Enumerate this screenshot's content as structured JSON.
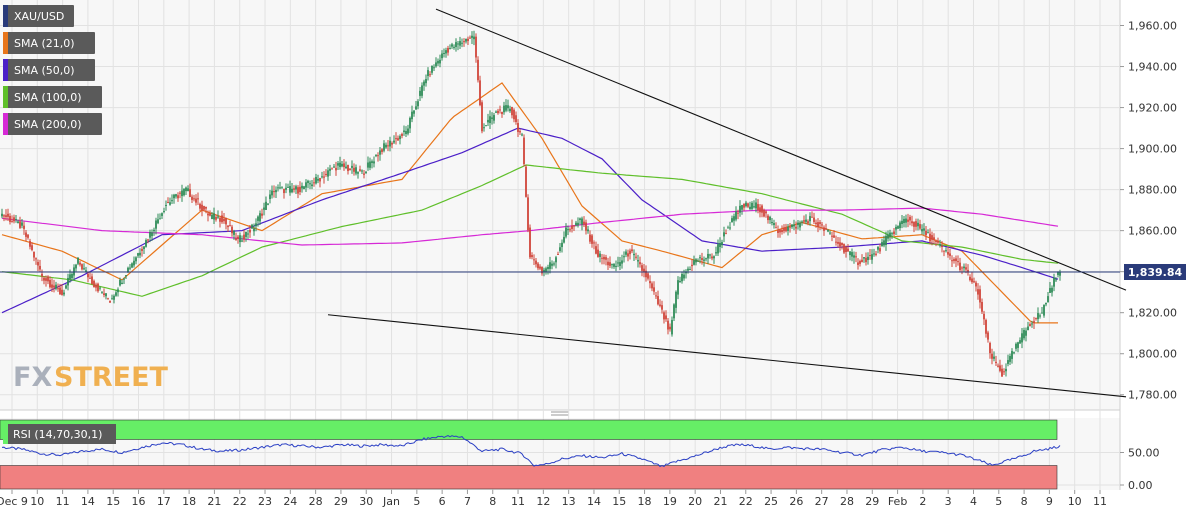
{
  "colors": {
    "background": "#f7f7f7",
    "grid": "#e2e2e2",
    "up": "#2e8b57",
    "down": "#d0453a",
    "sma21": "#e8751a",
    "sma50": "#4b1fc8",
    "sma100": "#5fbf2a",
    "sma200": "#d629d6",
    "price_line": "#2a3b7a",
    "trend": "#111111",
    "rsi_line": "#2a3fc4",
    "rsi_overbought": "#66ee66",
    "rsi_oversold": "#f08080",
    "legend_bg": "#5a5a5a"
  },
  "watermark": {
    "text_fx": "FX",
    "text_street": "STREET"
  },
  "price_tag": "1,839.84",
  "chart_data": [
    {
      "type": "candlestick",
      "symbol": "XAU/USD",
      "ylim": [
        1775,
        1970
      ],
      "y_ticks": [
        "1,780.00",
        "1,800.00",
        "1,820.00",
        "1,840.00",
        "1,860.00",
        "1,880.00",
        "1,900.00",
        "1,920.00",
        "1,940.00",
        "1,960.00"
      ],
      "y_tick_values": [
        1780,
        1800,
        1820,
        1840,
        1860,
        1880,
        1900,
        1920,
        1940,
        1960
      ],
      "x_labels": [
        "Dec 9",
        "10",
        "11",
        "14",
        "15",
        "16",
        "17",
        "18",
        "21",
        "22",
        "23",
        "24",
        "28",
        "29",
        "30",
        "Jan",
        "5",
        "6",
        "7",
        "8",
        "11",
        "12",
        "13",
        "14",
        "15",
        "18",
        "19",
        "20",
        "21",
        "22",
        "25",
        "26",
        "27",
        "28",
        "29",
        "Feb",
        "2",
        "3",
        "4",
        "5",
        "8",
        "9",
        "10",
        "11"
      ],
      "last_price": 1839.84,
      "price_anchors": [
        [
          0,
          1868
        ],
        [
          10,
          1862
        ],
        [
          20,
          1838
        ],
        [
          30,
          1829
        ],
        [
          38,
          1845
        ],
        [
          46,
          1834
        ],
        [
          54,
          1826
        ],
        [
          62,
          1840
        ],
        [
          72,
          1855
        ],
        [
          82,
          1873
        ],
        [
          92,
          1880
        ],
        [
          104,
          1867
        ],
        [
          110,
          1866
        ],
        [
          118,
          1855
        ],
        [
          126,
          1862
        ],
        [
          136,
          1880
        ],
        [
          148,
          1880
        ],
        [
          158,
          1885
        ],
        [
          168,
          1892
        ],
        [
          180,
          1888
        ],
        [
          190,
          1900
        ],
        [
          202,
          1908
        ],
        [
          212,
          1935
        ],
        [
          222,
          1948
        ],
        [
          230,
          1952
        ],
        [
          236,
          1955
        ],
        [
          240,
          1910
        ],
        [
          248,
          1918
        ],
        [
          254,
          1920
        ],
        [
          260,
          1905
        ],
        [
          264,
          1848
        ],
        [
          270,
          1840
        ],
        [
          276,
          1845
        ],
        [
          282,
          1860
        ],
        [
          290,
          1865
        ],
        [
          298,
          1848
        ],
        [
          306,
          1842
        ],
        [
          314,
          1850
        ],
        [
          322,
          1838
        ],
        [
          330,
          1820
        ],
        [
          334,
          1810
        ],
        [
          338,
          1835
        ],
        [
          346,
          1845
        ],
        [
          356,
          1848
        ],
        [
          362,
          1860
        ],
        [
          370,
          1872
        ],
        [
          378,
          1872
        ],
        [
          388,
          1860
        ],
        [
          396,
          1862
        ],
        [
          404,
          1866
        ],
        [
          412,
          1860
        ],
        [
          420,
          1852
        ],
        [
          428,
          1845
        ],
        [
          436,
          1848
        ],
        [
          444,
          1858
        ],
        [
          452,
          1866
        ],
        [
          458,
          1862
        ],
        [
          466,
          1855
        ],
        [
          474,
          1847
        ],
        [
          482,
          1840
        ],
        [
          488,
          1830
        ],
        [
          494,
          1800
        ],
        [
          500,
          1790
        ],
        [
          508,
          1805
        ],
        [
          514,
          1815
        ],
        [
          520,
          1820
        ],
        [
          525,
          1834
        ],
        [
          529,
          1839.84
        ]
      ],
      "legend": [
        {
          "label": "XAU/USD",
          "color_key": "price_line"
        },
        {
          "label": "SMA (21,0)",
          "color_key": "sma21"
        },
        {
          "label": "SMA (50,0)",
          "color_key": "sma50"
        },
        {
          "label": "SMA (100,0)",
          "color_key": "sma100"
        },
        {
          "label": "SMA (200,0)",
          "color_key": "sma200"
        }
      ],
      "sma_series": [
        {
          "key": "sma21",
          "points": [
            [
              0,
              1858
            ],
            [
              30,
              1850
            ],
            [
              60,
              1836
            ],
            [
              100,
              1870
            ],
            [
              130,
              1860
            ],
            [
              160,
              1878
            ],
            [
              200,
              1885
            ],
            [
              225,
              1915
            ],
            [
              250,
              1932
            ],
            [
              270,
              1905
            ],
            [
              290,
              1872
            ],
            [
              310,
              1855
            ],
            [
              330,
              1850
            ],
            [
              360,
              1842
            ],
            [
              380,
              1858
            ],
            [
              400,
              1864
            ],
            [
              430,
              1856
            ],
            [
              460,
              1858
            ],
            [
              480,
              1850
            ],
            [
              500,
              1830
            ],
            [
              515,
              1815
            ],
            [
              529,
              1815
            ]
          ]
        },
        {
          "key": "sma50",
          "points": [
            [
              0,
              1820
            ],
            [
              40,
              1838
            ],
            [
              80,
              1858
            ],
            [
              120,
              1860
            ],
            [
              160,
              1875
            ],
            [
              200,
              1888
            ],
            [
              230,
              1898
            ],
            [
              258,
              1910
            ],
            [
              280,
              1905
            ],
            [
              300,
              1895
            ],
            [
              320,
              1875
            ],
            [
              350,
              1855
            ],
            [
              380,
              1850
            ],
            [
              420,
              1852
            ],
            [
              460,
              1855
            ],
            [
              490,
              1848
            ],
            [
              510,
              1842
            ],
            [
              529,
              1836
            ]
          ]
        },
        {
          "key": "sma100",
          "points": [
            [
              0,
              1840
            ],
            [
              35,
              1836
            ],
            [
              70,
              1828
            ],
            [
              100,
              1838
            ],
            [
              130,
              1852
            ],
            [
              170,
              1862
            ],
            [
              210,
              1870
            ],
            [
              240,
              1882
            ],
            [
              262,
              1892
            ],
            [
              300,
              1888
            ],
            [
              340,
              1885
            ],
            [
              380,
              1878
            ],
            [
              420,
              1868
            ],
            [
              450,
              1855
            ],
            [
              480,
              1852
            ],
            [
              510,
              1846
            ],
            [
              529,
              1844
            ]
          ]
        },
        {
          "key": "sma200",
          "points": [
            [
              0,
              1866
            ],
            [
              50,
              1860
            ],
            [
              100,
              1858
            ],
            [
              150,
              1853
            ],
            [
              200,
              1854
            ],
            [
              240,
              1858
            ],
            [
              264,
              1860
            ],
            [
              300,
              1864
            ],
            [
              340,
              1868
            ],
            [
              380,
              1870
            ],
            [
              420,
              1870
            ],
            [
              460,
              1871
            ],
            [
              490,
              1868
            ],
            [
              529,
              1862
            ]
          ]
        }
      ],
      "trendlines": [
        {
          "label": "upper",
          "from": [
            217,
            1968
          ],
          "to": [
            562,
            1831
          ]
        },
        {
          "label": "lower",
          "from": [
            163,
            1819
          ],
          "to": [
            562,
            1779
          ]
        }
      ]
    },
    {
      "type": "line",
      "title": "RSI (14,70,30,1)",
      "ylim": [
        0,
        100
      ],
      "y_ticks": [
        "50.00",
        "0.00"
      ],
      "y_tick_values": [
        50,
        0
      ],
      "overbought": 70,
      "oversold": 30,
      "anchors": [
        [
          0,
          58
        ],
        [
          10,
          55
        ],
        [
          20,
          48
        ],
        [
          30,
          46
        ],
        [
          40,
          52
        ],
        [
          50,
          55
        ],
        [
          60,
          50
        ],
        [
          70,
          58
        ],
        [
          80,
          65
        ],
        [
          90,
          62
        ],
        [
          100,
          55
        ],
        [
          110,
          52
        ],
        [
          120,
          54
        ],
        [
          130,
          58
        ],
        [
          140,
          62
        ],
        [
          150,
          60
        ],
        [
          160,
          58
        ],
        [
          170,
          62
        ],
        [
          180,
          60
        ],
        [
          190,
          62
        ],
        [
          200,
          60
        ],
        [
          210,
          70
        ],
        [
          220,
          75
        ],
        [
          230,
          74
        ],
        [
          240,
          52
        ],
        [
          250,
          55
        ],
        [
          260,
          48
        ],
        [
          266,
          30
        ],
        [
          272,
          32
        ],
        [
          280,
          40
        ],
        [
          290,
          45
        ],
        [
          300,
          42
        ],
        [
          310,
          48
        ],
        [
          320,
          40
        ],
        [
          330,
          28
        ],
        [
          336,
          35
        ],
        [
          344,
          42
        ],
        [
          352,
          50
        ],
        [
          360,
          58
        ],
        [
          368,
          62
        ],
        [
          376,
          60
        ],
        [
          384,
          55
        ],
        [
          392,
          58
        ],
        [
          400,
          56
        ],
        [
          410,
          55
        ],
        [
          420,
          50
        ],
        [
          430,
          46
        ],
        [
          440,
          54
        ],
        [
          450,
          58
        ],
        [
          460,
          52
        ],
        [
          470,
          50
        ],
        [
          480,
          46
        ],
        [
          490,
          36
        ],
        [
          495,
          30
        ],
        [
          500,
          35
        ],
        [
          508,
          42
        ],
        [
          516,
          52
        ],
        [
          524,
          56
        ],
        [
          529,
          60
        ]
      ]
    }
  ]
}
